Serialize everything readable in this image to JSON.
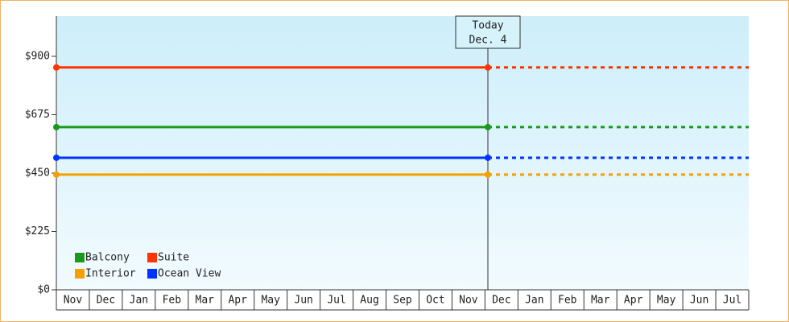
{
  "chart_data": {
    "type": "line",
    "categories": [
      "Nov",
      "Dec",
      "Jan",
      "Feb",
      "Mar",
      "Apr",
      "May",
      "Jun",
      "Jul",
      "Aug",
      "Sep",
      "Oct",
      "Nov",
      "Dec",
      "Jan",
      "Feb",
      "Mar",
      "Apr",
      "May",
      "Jun",
      "Jul"
    ],
    "series": [
      {
        "name": "Balcony",
        "color": "#1a9a1a",
        "value": 627
      },
      {
        "name": "Suite",
        "color": "#ff3300",
        "value": 857
      },
      {
        "name": "Interior",
        "color": "#f5a000",
        "value": 444
      },
      {
        "name": "Ocean View",
        "color": "#0033ff",
        "value": 509
      }
    ],
    "ylim": [
      0,
      1055
    ],
    "yticks": [
      {
        "value": 0,
        "label": "$0"
      },
      {
        "value": 225,
        "label": "$225"
      },
      {
        "value": 450,
        "label": "$450"
      },
      {
        "value": 675,
        "label": "$675"
      },
      {
        "value": 900,
        "label": "$900"
      }
    ],
    "annotation": {
      "title": "Today",
      "date": "Dec. 4"
    },
    "legend": "lower-left"
  }
}
